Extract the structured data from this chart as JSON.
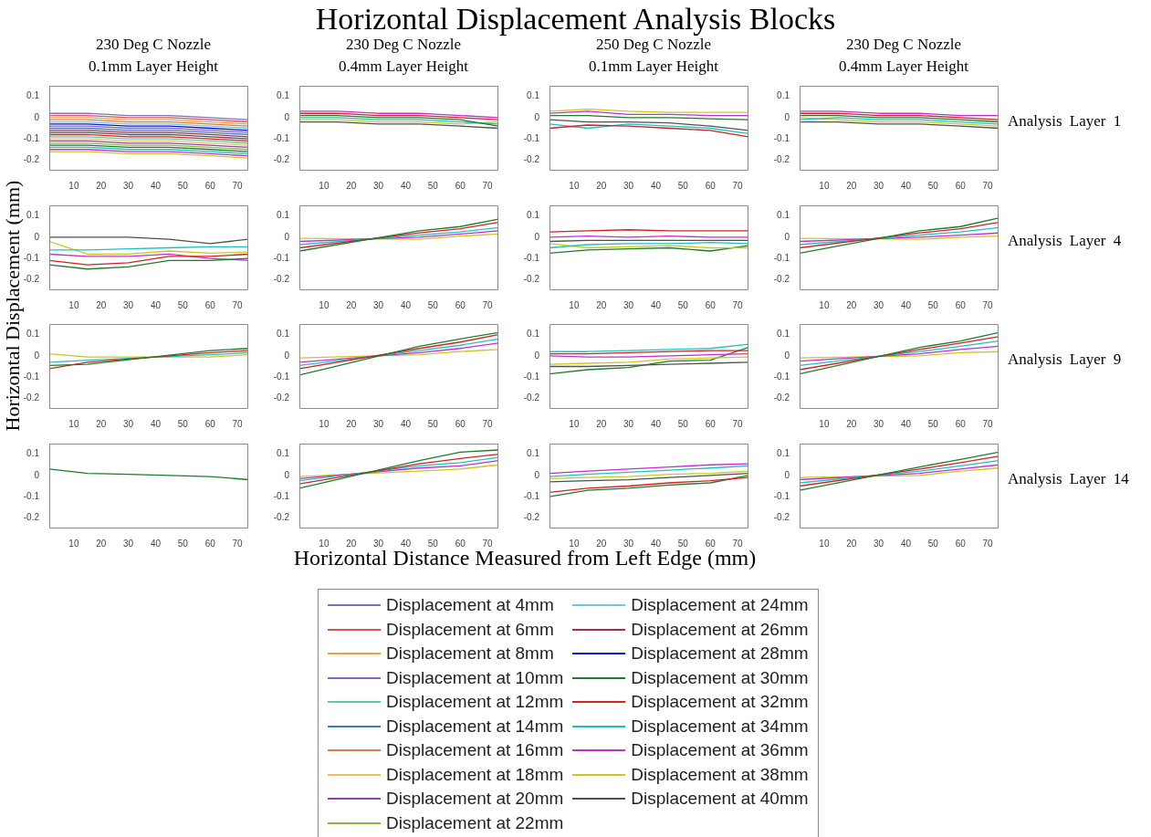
{
  "chart_data": [
    {
      "type": "other",
      "title": "Horizontal Displacement Analysis Blocks"
    },
    {
      "type": "line",
      "subtitle": "230 Deg C Nozzle 0.1mm Layer Height",
      "xlabel": "Horizontal Distance Measured from Left Edge (mm)",
      "ylabel": "Horizontal Displacement (mm)",
      "legend": "bottom",
      "x": [
        1,
        15,
        30,
        45,
        60,
        74
      ],
      "xlim": [
        1,
        74
      ],
      "xticks": [
        10,
        20,
        30,
        40,
        50,
        60,
        70
      ],
      "ylim": [
        -0.25,
        0.15
      ],
      "yticks": [
        -0.2,
        -0.1,
        0,
        0.1
      ],
      "series": [
        {
          "name": "Displacement at 4mm",
          "color": "#7e6fc0",
          "values": [
            0.02,
            0.02,
            0.01,
            0.01,
            0,
            -0.01
          ]
        },
        {
          "name": "Displacement at 6mm",
          "color": "#d9534f",
          "values": [
            0.01,
            0.01,
            0,
            0,
            -0.01,
            -0.02
          ]
        },
        {
          "name": "Displacement at 8mm",
          "color": "#f0a040",
          "values": [
            0,
            0,
            -0.01,
            -0.01,
            -0.02,
            -0.03
          ]
        },
        {
          "name": "Displacement at 10mm",
          "color": "#8a63c0",
          "values": [
            -0.04,
            -0.04,
            -0.05,
            -0.05,
            -0.06,
            -0.07
          ]
        },
        {
          "name": "Displacement at 12mm",
          "color": "#5fc8a8",
          "values": [
            -0.09,
            -0.09,
            -0.1,
            -0.1,
            -0.11,
            -0.12
          ]
        },
        {
          "name": "Displacement at 14mm",
          "color": "#3a7ab8",
          "values": [
            -0.05,
            -0.05,
            -0.06,
            -0.06,
            -0.07,
            -0.08
          ]
        },
        {
          "name": "Displacement at 16mm",
          "color": "#e0784a",
          "values": [
            -0.01,
            -0.01,
            -0.02,
            -0.02,
            -0.03,
            -0.04
          ]
        },
        {
          "name": "Displacement at 18mm",
          "color": "#e8c060",
          "values": [
            -0.1,
            -0.1,
            -0.11,
            -0.11,
            -0.12,
            -0.13
          ]
        },
        {
          "name": "Displacement at 20mm",
          "color": "#8e44ad",
          "values": [
            -0.11,
            -0.11,
            -0.12,
            -0.12,
            -0.13,
            -0.14
          ]
        },
        {
          "name": "Displacement at 22mm",
          "color": "#8db840",
          "values": [
            -0.12,
            -0.12,
            -0.13,
            -0.13,
            -0.14,
            -0.15
          ]
        },
        {
          "name": "Displacement at 24mm",
          "color": "#6ec6e0",
          "values": [
            -0.02,
            -0.02,
            -0.03,
            -0.03,
            -0.04,
            -0.05
          ]
        },
        {
          "name": "Displacement at 26mm",
          "color": "#a0304a",
          "values": [
            -0.06,
            -0.06,
            -0.07,
            -0.07,
            -0.08,
            -0.09
          ]
        },
        {
          "name": "Displacement at 28mm",
          "color": "#1010d0",
          "values": [
            -0.03,
            -0.03,
            -0.04,
            -0.04,
            -0.05,
            -0.06
          ]
        },
        {
          "name": "Displacement at 30mm",
          "color": "#1e7b2e",
          "values": [
            -0.13,
            -0.13,
            -0.14,
            -0.14,
            -0.15,
            -0.16
          ]
        },
        {
          "name": "Displacement at 32mm",
          "color": "#d42020",
          "values": [
            -0.08,
            -0.08,
            -0.09,
            -0.09,
            -0.1,
            -0.11
          ]
        },
        {
          "name": "Displacement at 34mm",
          "color": "#20c0c0",
          "values": [
            -0.14,
            -0.14,
            -0.15,
            -0.15,
            -0.16,
            -0.17
          ]
        },
        {
          "name": "Displacement at 36mm",
          "color": "#c030d0",
          "values": [
            -0.15,
            -0.15,
            -0.16,
            -0.16,
            -0.17,
            -0.18
          ]
        },
        {
          "name": "Displacement at 38mm",
          "color": "#c8c820",
          "values": [
            -0.16,
            -0.16,
            -0.17,
            -0.17,
            -0.18,
            -0.19
          ]
        },
        {
          "name": "Displacement at 40mm",
          "color": "#505050",
          "values": [
            -0.07,
            -0.07,
            -0.08,
            -0.08,
            -0.09,
            -0.1
          ]
        }
      ]
    },
    {
      "type": "line",
      "subtitle": "230 Deg C Nozzle 0.4mm Layer Height",
      "x": [
        1,
        15,
        30,
        45,
        60,
        74
      ],
      "xlim": [
        1,
        74
      ],
      "xticks": [
        10,
        20,
        30,
        40,
        50,
        60,
        70
      ],
      "ylim": [
        -0.25,
        0.15
      ],
      "yticks": [
        -0.2,
        -0.1,
        0,
        0.1
      ],
      "series": [
        {
          "color": "#d42020",
          "values": [
            0.02,
            0.02,
            0.01,
            0.01,
            0,
            -0.01
          ]
        },
        {
          "color": "#1e7b2e",
          "values": [
            0.01,
            0.01,
            0,
            0,
            -0.01,
            -0.04
          ]
        },
        {
          "color": "#20c0c0",
          "values": [
            0,
            0,
            -0.01,
            -0.01,
            -0.02,
            -0.03
          ]
        },
        {
          "color": "#c030d0",
          "values": [
            0.03,
            0.03,
            0.02,
            0.02,
            0.01,
            0
          ]
        },
        {
          "color": "#c8c820",
          "values": [
            -0.01,
            -0.01,
            -0.02,
            -0.02,
            -0.03,
            -0.02
          ]
        },
        {
          "color": "#505050",
          "values": [
            -0.02,
            -0.02,
            -0.03,
            -0.03,
            -0.04,
            -0.05
          ]
        }
      ]
    },
    {
      "type": "line",
      "subtitle": "250 Deg C Nozzle 0.1mm Layer Height",
      "x": [
        1,
        15,
        30,
        45,
        60,
        74
      ],
      "xlim": [
        1,
        74
      ],
      "xticks": [
        10,
        20,
        30,
        40,
        50,
        60,
        70
      ],
      "ylim": [
        -0.25,
        0.15
      ],
      "yticks": [
        -0.2,
        -0.1,
        0,
        0.1
      ],
      "series": [
        {
          "color": "#c8c820",
          "values": [
            0.03,
            0.04,
            0.03,
            0.025,
            0.025,
            0.025
          ]
        },
        {
          "color": "#c030d0",
          "values": [
            0.02,
            0.03,
            0.015,
            0.015,
            0.01,
            0.01
          ]
        },
        {
          "color": "#1e7b2e",
          "values": [
            0.01,
            0.01,
            0,
            0,
            -0.005,
            -0.01
          ]
        },
        {
          "color": "#d42020",
          "values": [
            -0.05,
            -0.035,
            -0.04,
            -0.05,
            -0.06,
            -0.09
          ]
        },
        {
          "color": "#20c0c0",
          "values": [
            -0.03,
            -0.05,
            -0.03,
            -0.04,
            -0.05,
            -0.075
          ]
        },
        {
          "color": "#505050",
          "values": [
            -0.01,
            -0.02,
            -0.02,
            -0.025,
            -0.04,
            -0.06
          ]
        }
      ]
    },
    {
      "type": "line",
      "subtitle": "230 Deg C Nozzle 0.4mm Layer Height",
      "annotations": [
        "Analysis Layer 1"
      ],
      "x": [
        1,
        15,
        30,
        45,
        60,
        74
      ],
      "xlim": [
        1,
        74
      ],
      "xticks": [
        10,
        20,
        30,
        40,
        50,
        60,
        70
      ],
      "ylim": [
        -0.25,
        0.15
      ],
      "yticks": [
        -0.2,
        -0.1,
        0,
        0.1
      ],
      "series": [
        {
          "color": "#d42020",
          "values": [
            0.02,
            0.02,
            0.01,
            0.01,
            0,
            -0.01
          ]
        },
        {
          "color": "#1e7b2e",
          "values": [
            0.01,
            0.01,
            0,
            0,
            -0.01,
            -0.02
          ]
        },
        {
          "color": "#20c0c0",
          "values": [
            -0.01,
            0,
            -0.01,
            -0.01,
            -0.02,
            -0.03
          ]
        },
        {
          "color": "#c030d0",
          "values": [
            0.03,
            0.03,
            0.02,
            0.02,
            0.01,
            0.01
          ]
        },
        {
          "color": "#c8c820",
          "values": [
            0,
            -0.01,
            -0.02,
            -0.02,
            -0.03,
            -0.04
          ]
        },
        {
          "color": "#505050",
          "values": [
            -0.02,
            -0.02,
            -0.03,
            -0.03,
            -0.04,
            -0.05
          ]
        }
      ]
    },
    {
      "type": "line",
      "x": [
        1,
        15,
        30,
        45,
        60,
        74
      ],
      "xlim": [
        1,
        74
      ],
      "xticks": [
        10,
        20,
        30,
        40,
        50,
        60,
        70
      ],
      "ylim": [
        -0.25,
        0.15
      ],
      "yticks": [
        -0.2,
        -0.1,
        0,
        0.1
      ],
      "series": [
        {
          "color": "#d42020",
          "values": [
            -0.11,
            -0.13,
            -0.12,
            -0.09,
            -0.09,
            -0.08
          ]
        },
        {
          "color": "#1e7b2e",
          "values": [
            -0.13,
            -0.15,
            -0.14,
            -0.11,
            -0.11,
            -0.1
          ]
        },
        {
          "color": "#20c0c0",
          "values": [
            -0.06,
            -0.06,
            -0.055,
            -0.05,
            -0.045,
            -0.045
          ]
        },
        {
          "color": "#c030d0",
          "values": [
            -0.08,
            -0.09,
            -0.09,
            -0.08,
            -0.1,
            -0.11
          ]
        },
        {
          "color": "#c8c820",
          "values": [
            -0.02,
            -0.08,
            -0.08,
            -0.065,
            -0.075,
            -0.07
          ]
        },
        {
          "color": "#505050",
          "values": [
            0,
            0,
            0,
            -0.01,
            -0.03,
            -0.01
          ]
        }
      ]
    },
    {
      "type": "line",
      "x": [
        1,
        45,
        60,
        74
      ],
      "xlim": [
        1,
        74
      ],
      "xticks": [
        10,
        20,
        30,
        40,
        50,
        60,
        70
      ],
      "ylim": [
        -0.25,
        0.15
      ],
      "yticks": [
        -0.2,
        -0.1,
        0,
        0.1
      ],
      "series": [
        {
          "color": "#1e7b2e",
          "values": [
            -0.065,
            0.03,
            0.05,
            0.085
          ]
        },
        {
          "color": "#d42020",
          "values": [
            -0.05,
            0.02,
            0.04,
            0.07
          ]
        },
        {
          "color": "#20c0c0",
          "values": [
            -0.035,
            0.01,
            0.025,
            0.045
          ]
        },
        {
          "color": "#c030d0",
          "values": [
            -0.02,
            0,
            0.015,
            0.03
          ]
        },
        {
          "color": "#c8c820",
          "values": [
            -0.005,
            -0.01,
            0.005,
            0.015
          ]
        }
      ]
    },
    {
      "type": "line",
      "x": [
        1,
        15,
        30,
        45,
        60,
        74
      ],
      "xlim": [
        1,
        74
      ],
      "xticks": [
        10,
        20,
        30,
        40,
        50,
        60,
        70
      ],
      "ylim": [
        -0.25,
        0.15
      ],
      "yticks": [
        -0.2,
        -0.1,
        0,
        0.1
      ],
      "series": [
        {
          "color": "#d42020",
          "values": [
            0.025,
            0.03,
            0.035,
            0.03,
            0.03,
            0.03
          ]
        },
        {
          "color": "#c030d0",
          "values": [
            0,
            0.005,
            0,
            0.005,
            0,
            0
          ]
        },
        {
          "color": "#505050",
          "values": [
            -0.02,
            -0.015,
            -0.015,
            -0.015,
            -0.015,
            -0.015
          ]
        },
        {
          "color": "#20c0c0",
          "values": [
            -0.05,
            -0.035,
            -0.03,
            -0.03,
            -0.025,
            -0.03
          ]
        },
        {
          "color": "#c8c820",
          "values": [
            -0.03,
            -0.05,
            -0.045,
            -0.04,
            -0.05,
            -0.05
          ]
        },
        {
          "color": "#1e7b2e",
          "values": [
            -0.075,
            -0.06,
            -0.055,
            -0.05,
            -0.065,
            -0.04
          ]
        }
      ]
    },
    {
      "type": "line",
      "annotations": [
        "Analysis Layer 4"
      ],
      "x": [
        1,
        45,
        60,
        74
      ],
      "xlim": [
        1,
        74
      ],
      "xticks": [
        10,
        20,
        30,
        40,
        50,
        60,
        70
      ],
      "ylim": [
        -0.25,
        0.15
      ],
      "yticks": [
        -0.2,
        -0.1,
        0,
        0.1
      ],
      "series": [
        {
          "color": "#1e7b2e",
          "values": [
            -0.075,
            0.03,
            0.05,
            0.09
          ]
        },
        {
          "color": "#d42020",
          "values": [
            -0.05,
            0.02,
            0.04,
            0.07
          ]
        },
        {
          "color": "#20c0c0",
          "values": [
            -0.035,
            0.01,
            0.025,
            0.045
          ]
        },
        {
          "color": "#c030d0",
          "values": [
            -0.02,
            0,
            0.01,
            0.02
          ]
        },
        {
          "color": "#c8c820",
          "values": [
            -0.005,
            -0.01,
            0,
            0.005
          ]
        }
      ]
    },
    {
      "type": "line",
      "x": [
        1,
        15,
        60,
        74
      ],
      "xlim": [
        1,
        74
      ],
      "xticks": [
        10,
        20,
        30,
        40,
        50,
        60,
        70
      ],
      "ylim": [
        -0.25,
        0.15
      ],
      "yticks": [
        -0.2,
        -0.1,
        0,
        0.1
      ],
      "series": [
        {
          "color": "#1e7b2e",
          "values": [
            -0.045,
            -0.04,
            0.025,
            0.035
          ]
        },
        {
          "color": "#d42020",
          "values": [
            -0.06,
            -0.03,
            0.015,
            0.025
          ]
        },
        {
          "color": "#20c0c0",
          "values": [
            -0.03,
            -0.02,
            0.005,
            0.015
          ]
        },
        {
          "color": "#c8c820",
          "values": [
            0.01,
            -0.005,
            -0.005,
            0.005
          ]
        }
      ]
    },
    {
      "type": "line",
      "x": [
        1,
        45,
        60,
        74
      ],
      "xlim": [
        1,
        74
      ],
      "xticks": [
        10,
        20,
        30,
        40,
        50,
        60,
        70
      ],
      "ylim": [
        -0.25,
        0.15
      ],
      "yticks": [
        -0.2,
        -0.1,
        0,
        0.1
      ],
      "series": [
        {
          "color": "#1e7b2e",
          "values": [
            -0.09,
            0.045,
            0.08,
            0.11
          ]
        },
        {
          "color": "#d42020",
          "values": [
            -0.06,
            0.035,
            0.065,
            0.1
          ]
        },
        {
          "color": "#20c0c0",
          "values": [
            -0.045,
            0.025,
            0.05,
            0.08
          ]
        },
        {
          "color": "#c030d0",
          "values": [
            -0.03,
            0.015,
            0.035,
            0.06
          ]
        },
        {
          "color": "#c8c820",
          "values": [
            -0.01,
            0.005,
            0.02,
            0.03
          ]
        }
      ]
    },
    {
      "type": "line",
      "x": [
        1,
        15,
        30,
        45,
        60,
        74
      ],
      "xlim": [
        1,
        74
      ],
      "xticks": [
        10,
        20,
        30,
        40,
        50,
        60,
        70
      ],
      "ylim": [
        -0.25,
        0.15
      ],
      "yticks": [
        -0.2,
        -0.1,
        0,
        0.1
      ],
      "series": [
        {
          "color": "#20c0c0",
          "values": [
            0.02,
            0.02,
            0.025,
            0.03,
            0.035,
            0.055
          ]
        },
        {
          "color": "#d42020",
          "values": [
            0.01,
            0.01,
            0.015,
            0.02,
            0.025,
            0.025
          ]
        },
        {
          "color": "#c030d0",
          "values": [
            0,
            -0.005,
            -0.005,
            0,
            0.005,
            0.01
          ]
        },
        {
          "color": "#c8c820",
          "values": [
            -0.04,
            -0.035,
            -0.03,
            -0.015,
            -0.01,
            -0.005
          ]
        },
        {
          "color": "#505050",
          "values": [
            -0.05,
            -0.05,
            -0.045,
            -0.04,
            -0.035,
            -0.03
          ]
        },
        {
          "color": "#1e7b2e",
          "values": [
            -0.085,
            -0.065,
            -0.055,
            -0.025,
            -0.02,
            0.04
          ]
        }
      ]
    },
    {
      "type": "line",
      "annotations": [
        "Analysis Layer 9"
      ],
      "x": [
        1,
        45,
        60,
        74
      ],
      "xlim": [
        1,
        74
      ],
      "xticks": [
        10,
        20,
        30,
        40,
        50,
        60,
        70
      ],
      "ylim": [
        -0.25,
        0.15
      ],
      "yticks": [
        -0.2,
        -0.1,
        0,
        0.1
      ],
      "series": [
        {
          "color": "#1e7b2e",
          "values": [
            -0.085,
            0.04,
            0.07,
            0.11
          ]
        },
        {
          "color": "#d42020",
          "values": [
            -0.065,
            0.03,
            0.06,
            0.09
          ]
        },
        {
          "color": "#20c0c0",
          "values": [
            -0.045,
            0.02,
            0.045,
            0.07
          ]
        },
        {
          "color": "#c030d0",
          "values": [
            -0.025,
            0.01,
            0.03,
            0.045
          ]
        },
        {
          "color": "#c8c820",
          "values": [
            -0.01,
            0,
            0.015,
            0.02
          ]
        }
      ]
    },
    {
      "type": "line",
      "x": [
        1,
        15,
        30,
        45,
        60,
        74
      ],
      "xlim": [
        1,
        74
      ],
      "xticks": [
        10,
        20,
        30,
        40,
        50,
        60,
        70
      ],
      "ylim": [
        -0.25,
        0.15
      ],
      "yticks": [
        -0.2,
        -0.1,
        0,
        0.1
      ],
      "series": [
        {
          "color": "#1e7b2e",
          "values": [
            0.03,
            0.01,
            0.005,
            0,
            -0.005,
            -0.02
          ]
        }
      ]
    },
    {
      "type": "line",
      "x": [
        1,
        45,
        60,
        74
      ],
      "xlim": [
        1,
        74
      ],
      "xticks": [
        10,
        20,
        30,
        40,
        50,
        60,
        70
      ],
      "ylim": [
        -0.25,
        0.15
      ],
      "yticks": [
        -0.2,
        -0.1,
        0,
        0.1
      ],
      "series": [
        {
          "color": "#1e7b2e",
          "values": [
            -0.06,
            0.07,
            0.11,
            0.12
          ]
        },
        {
          "color": "#d42020",
          "values": [
            -0.04,
            0.055,
            0.08,
            0.1
          ]
        },
        {
          "color": "#20c0c0",
          "values": [
            -0.025,
            0.045,
            0.06,
            0.085
          ]
        },
        {
          "color": "#c030d0",
          "values": [
            -0.015,
            0.035,
            0.045,
            0.07
          ]
        },
        {
          "color": "#c8c820",
          "values": [
            -0.005,
            0.02,
            0.03,
            0.05
          ]
        }
      ]
    },
    {
      "type": "line",
      "x": [
        1,
        15,
        30,
        45,
        60,
        74
      ],
      "xlim": [
        1,
        74
      ],
      "xticks": [
        10,
        20,
        30,
        40,
        50,
        60,
        70
      ],
      "ylim": [
        -0.25,
        0.15
      ],
      "yticks": [
        -0.2,
        -0.1,
        0,
        0.1
      ],
      "series": [
        {
          "color": "#c030d0",
          "values": [
            0.01,
            0.02,
            0.03,
            0.04,
            0.05,
            0.055
          ]
        },
        {
          "color": "#20c0c0",
          "values": [
            -0.005,
            0.005,
            0.015,
            0.025,
            0.035,
            0.045
          ]
        },
        {
          "color": "#c8c820",
          "values": [
            -0.015,
            -0.01,
            -0.005,
            0.005,
            0.01,
            0.02
          ]
        },
        {
          "color": "#505050",
          "values": [
            -0.03,
            -0.025,
            -0.02,
            -0.01,
            0,
            0.01
          ]
        },
        {
          "color": "#d42020",
          "values": [
            -0.08,
            -0.06,
            -0.05,
            -0.035,
            -0.025,
            -0.01
          ]
        },
        {
          "color": "#1e7b2e",
          "values": [
            -0.1,
            -0.07,
            -0.06,
            -0.045,
            -0.035,
            0
          ]
        }
      ]
    },
    {
      "type": "line",
      "annotations": [
        "Analysis Layer 14"
      ],
      "x": [
        1,
        45,
        60,
        74
      ],
      "xlim": [
        1,
        74
      ],
      "xticks": [
        10,
        20,
        30,
        40,
        50,
        60,
        70
      ],
      "ylim": [
        -0.25,
        0.15
      ],
      "yticks": [
        -0.2,
        -0.1,
        0,
        0.1
      ],
      "series": [
        {
          "color": "#1e7b2e",
          "values": [
            -0.07,
            0.04,
            0.075,
            0.11
          ]
        },
        {
          "color": "#d42020",
          "values": [
            -0.05,
            0.03,
            0.06,
            0.09
          ]
        },
        {
          "color": "#20c0c0",
          "values": [
            -0.035,
            0.02,
            0.045,
            0.07
          ]
        },
        {
          "color": "#c030d0",
          "values": [
            -0.02,
            0.01,
            0.03,
            0.05
          ]
        },
        {
          "color": "#c8c820",
          "values": [
            -0.01,
            0,
            0.02,
            0.035
          ]
        }
      ]
    }
  ]
}
